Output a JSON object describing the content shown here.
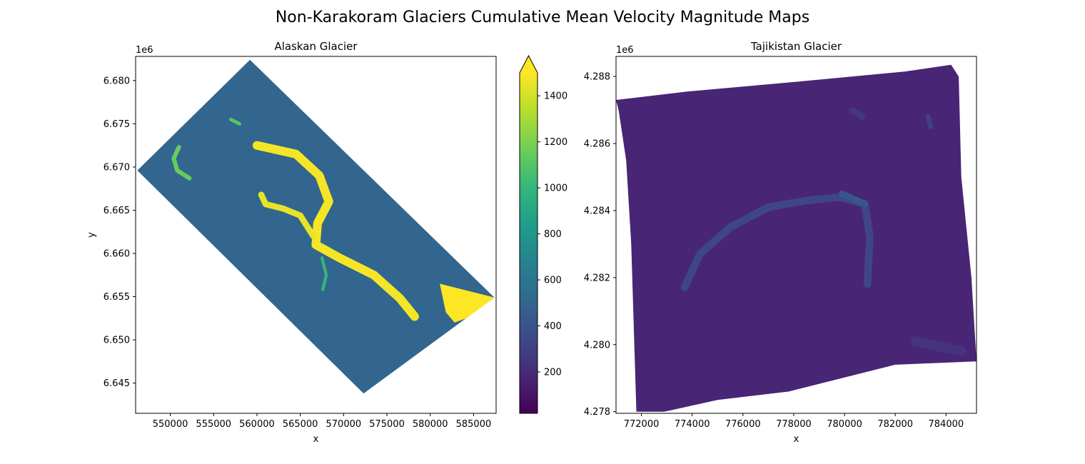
{
  "figure": {
    "suptitle": "Non-Karakoram Glaciers Cumulative Mean Velocity Magnitude Maps"
  },
  "chart_data": [
    {
      "type": "heatmap",
      "title": "Alaskan Glacier",
      "xlabel": "x",
      "ylabel": "y",
      "xlim": [
        546000,
        587600
      ],
      "ylim": [
        6641500,
        6682800
      ],
      "xticks": [
        550000,
        555000,
        560000,
        565000,
        570000,
        575000,
        580000,
        585000
      ],
      "xtick_labels": [
        "550000",
        "555000",
        "560000",
        "565000",
        "570000",
        "575000",
        "580000",
        "585000"
      ],
      "yticks": [
        6645000,
        6650000,
        6655000,
        6660000,
        6665000,
        6670000,
        6675000,
        6680000
      ],
      "ytick_labels": [
        "6.645",
        "6.650",
        "6.655",
        "6.660",
        "6.665",
        "6.670",
        "6.675",
        "6.680"
      ],
      "y_offset_label": "1e6",
      "colorbar": {
        "cmap": "viridis",
        "vmin": 20,
        "vmax": 1500,
        "extend": "max",
        "ticks": [
          200,
          400,
          600,
          800,
          1000,
          1200,
          1400
        ],
        "tick_labels": [
          "200",
          "400",
          "600",
          "800",
          "1000",
          "1200",
          "1400"
        ]
      },
      "background_value": 500,
      "footprint": [
        [
          559200,
          6682400
        ],
        [
          587400,
          6654900
        ],
        [
          572300,
          6643800
        ],
        [
          546200,
          6669600
        ]
      ],
      "features": [
        {
          "name": "main-trunk",
          "value": 1480,
          "width_m": 1000,
          "path": [
            [
              560000,
              6672500
            ],
            [
              564500,
              6671500
            ],
            [
              567200,
              6669000
            ],
            [
              568300,
              6666000
            ],
            [
              567000,
              6663500
            ],
            [
              566800,
              6661000
            ],
            [
              569500,
              6659500
            ],
            [
              573500,
              6657500
            ],
            [
              576500,
              6654800
            ],
            [
              578200,
              6652700
            ]
          ]
        },
        {
          "name": "west-branch",
          "value": 1450,
          "width_m": 700,
          "path": [
            [
              560500,
              6666800
            ],
            [
              561000,
              6665700
            ],
            [
              563000,
              6665200
            ],
            [
              565000,
              6664400
            ],
            [
              566500,
              6662000
            ]
          ]
        },
        {
          "name": "terminus-lobe",
          "value": 1500,
          "polygon": [
            [
              581100,
              6656500
            ],
            [
              587400,
              6654900
            ],
            [
              584200,
              6652500
            ],
            [
              582800,
              6652000
            ],
            [
              581800,
              6653200
            ]
          ]
        },
        {
          "name": "west-tributary",
          "value": 1150,
          "width_m": 500,
          "path": [
            [
              551000,
              6672300
            ],
            [
              550400,
              6671000
            ],
            [
              550800,
              6669600
            ],
            [
              552200,
              6668700
            ]
          ]
        },
        {
          "name": "small-tributary",
          "value": 1000,
          "width_m": 350,
          "path": [
            [
              567500,
              6659500
            ],
            [
              568000,
              6657500
            ],
            [
              567600,
              6655800
            ]
          ]
        },
        {
          "name": "bright-patch",
          "value": 1100,
          "width_m": 400,
          "path": [
            [
              557000,
              6675500
            ],
            [
              558000,
              6675000
            ]
          ]
        }
      ]
    },
    {
      "type": "heatmap",
      "title": "Tajikistan Glacier",
      "xlabel": "x",
      "ylabel": "",
      "xlim": [
        771000,
        785200
      ],
      "ylim": [
        4277950,
        4288600
      ],
      "xticks": [
        772000,
        774000,
        776000,
        778000,
        780000,
        782000,
        784000
      ],
      "xtick_labels": [
        "772000",
        "774000",
        "776000",
        "778000",
        "780000",
        "782000",
        "784000"
      ],
      "yticks": [
        4278000,
        4280000,
        4282000,
        4284000,
        4286000,
        4288000
      ],
      "ytick_labels": [
        "4.278",
        "4.280",
        "4.282",
        "4.284",
        "4.286",
        "4.288"
      ],
      "y_offset_label": "1e6",
      "colorbar": {
        "cmap": "viridis",
        "vmin": 20,
        "vmax": 1500
      },
      "background_value": 170,
      "footprint": [
        [
          771000,
          4287300
        ],
        [
          773800,
          4287550
        ],
        [
          778200,
          4287850
        ],
        [
          782400,
          4288150
        ],
        [
          784200,
          4288350
        ],
        [
          784500,
          4288000
        ],
        [
          784600,
          4285000
        ],
        [
          785000,
          4282000
        ],
        [
          785200,
          4279500
        ],
        [
          782000,
          4279400
        ],
        [
          777800,
          4278600
        ],
        [
          775000,
          4278350
        ],
        [
          772900,
          4278000
        ],
        [
          771800,
          4278000
        ],
        [
          771700,
          4280500
        ],
        [
          771600,
          4283000
        ],
        [
          771400,
          4285500
        ],
        [
          771100,
          4287000
        ]
      ],
      "features": [
        {
          "name": "glacier-ribbon",
          "value": 330,
          "width_m": 300,
          "path": [
            [
              773700,
              4281700
            ],
            [
              774300,
              4282700
            ],
            [
              775500,
              4283500
            ],
            [
              777000,
              4284100
            ],
            [
              778500,
              4284300
            ],
            [
              779800,
              4284400
            ],
            [
              780800,
              4284200
            ],
            [
              781000,
              4283200
            ],
            [
              780900,
              4281800
            ]
          ]
        },
        {
          "name": "upper-bright-spot",
          "value": 420,
          "width_m": 250,
          "path": [
            [
              779900,
              4284500
            ],
            [
              780800,
              4284200
            ]
          ]
        },
        {
          "name": "top-patch-1",
          "value": 260,
          "width_m": 250,
          "path": [
            [
              780300,
              4287000
            ],
            [
              780700,
              4286800
            ]
          ]
        },
        {
          "name": "top-patch-2",
          "value": 300,
          "width_m": 200,
          "path": [
            [
              783300,
              4286800
            ],
            [
              783400,
              4286500
            ]
          ]
        },
        {
          "name": "lower-band",
          "value": 240,
          "width_m": 400,
          "path": [
            [
              782800,
              4280100
            ],
            [
              784600,
              4279800
            ]
          ]
        }
      ]
    }
  ]
}
